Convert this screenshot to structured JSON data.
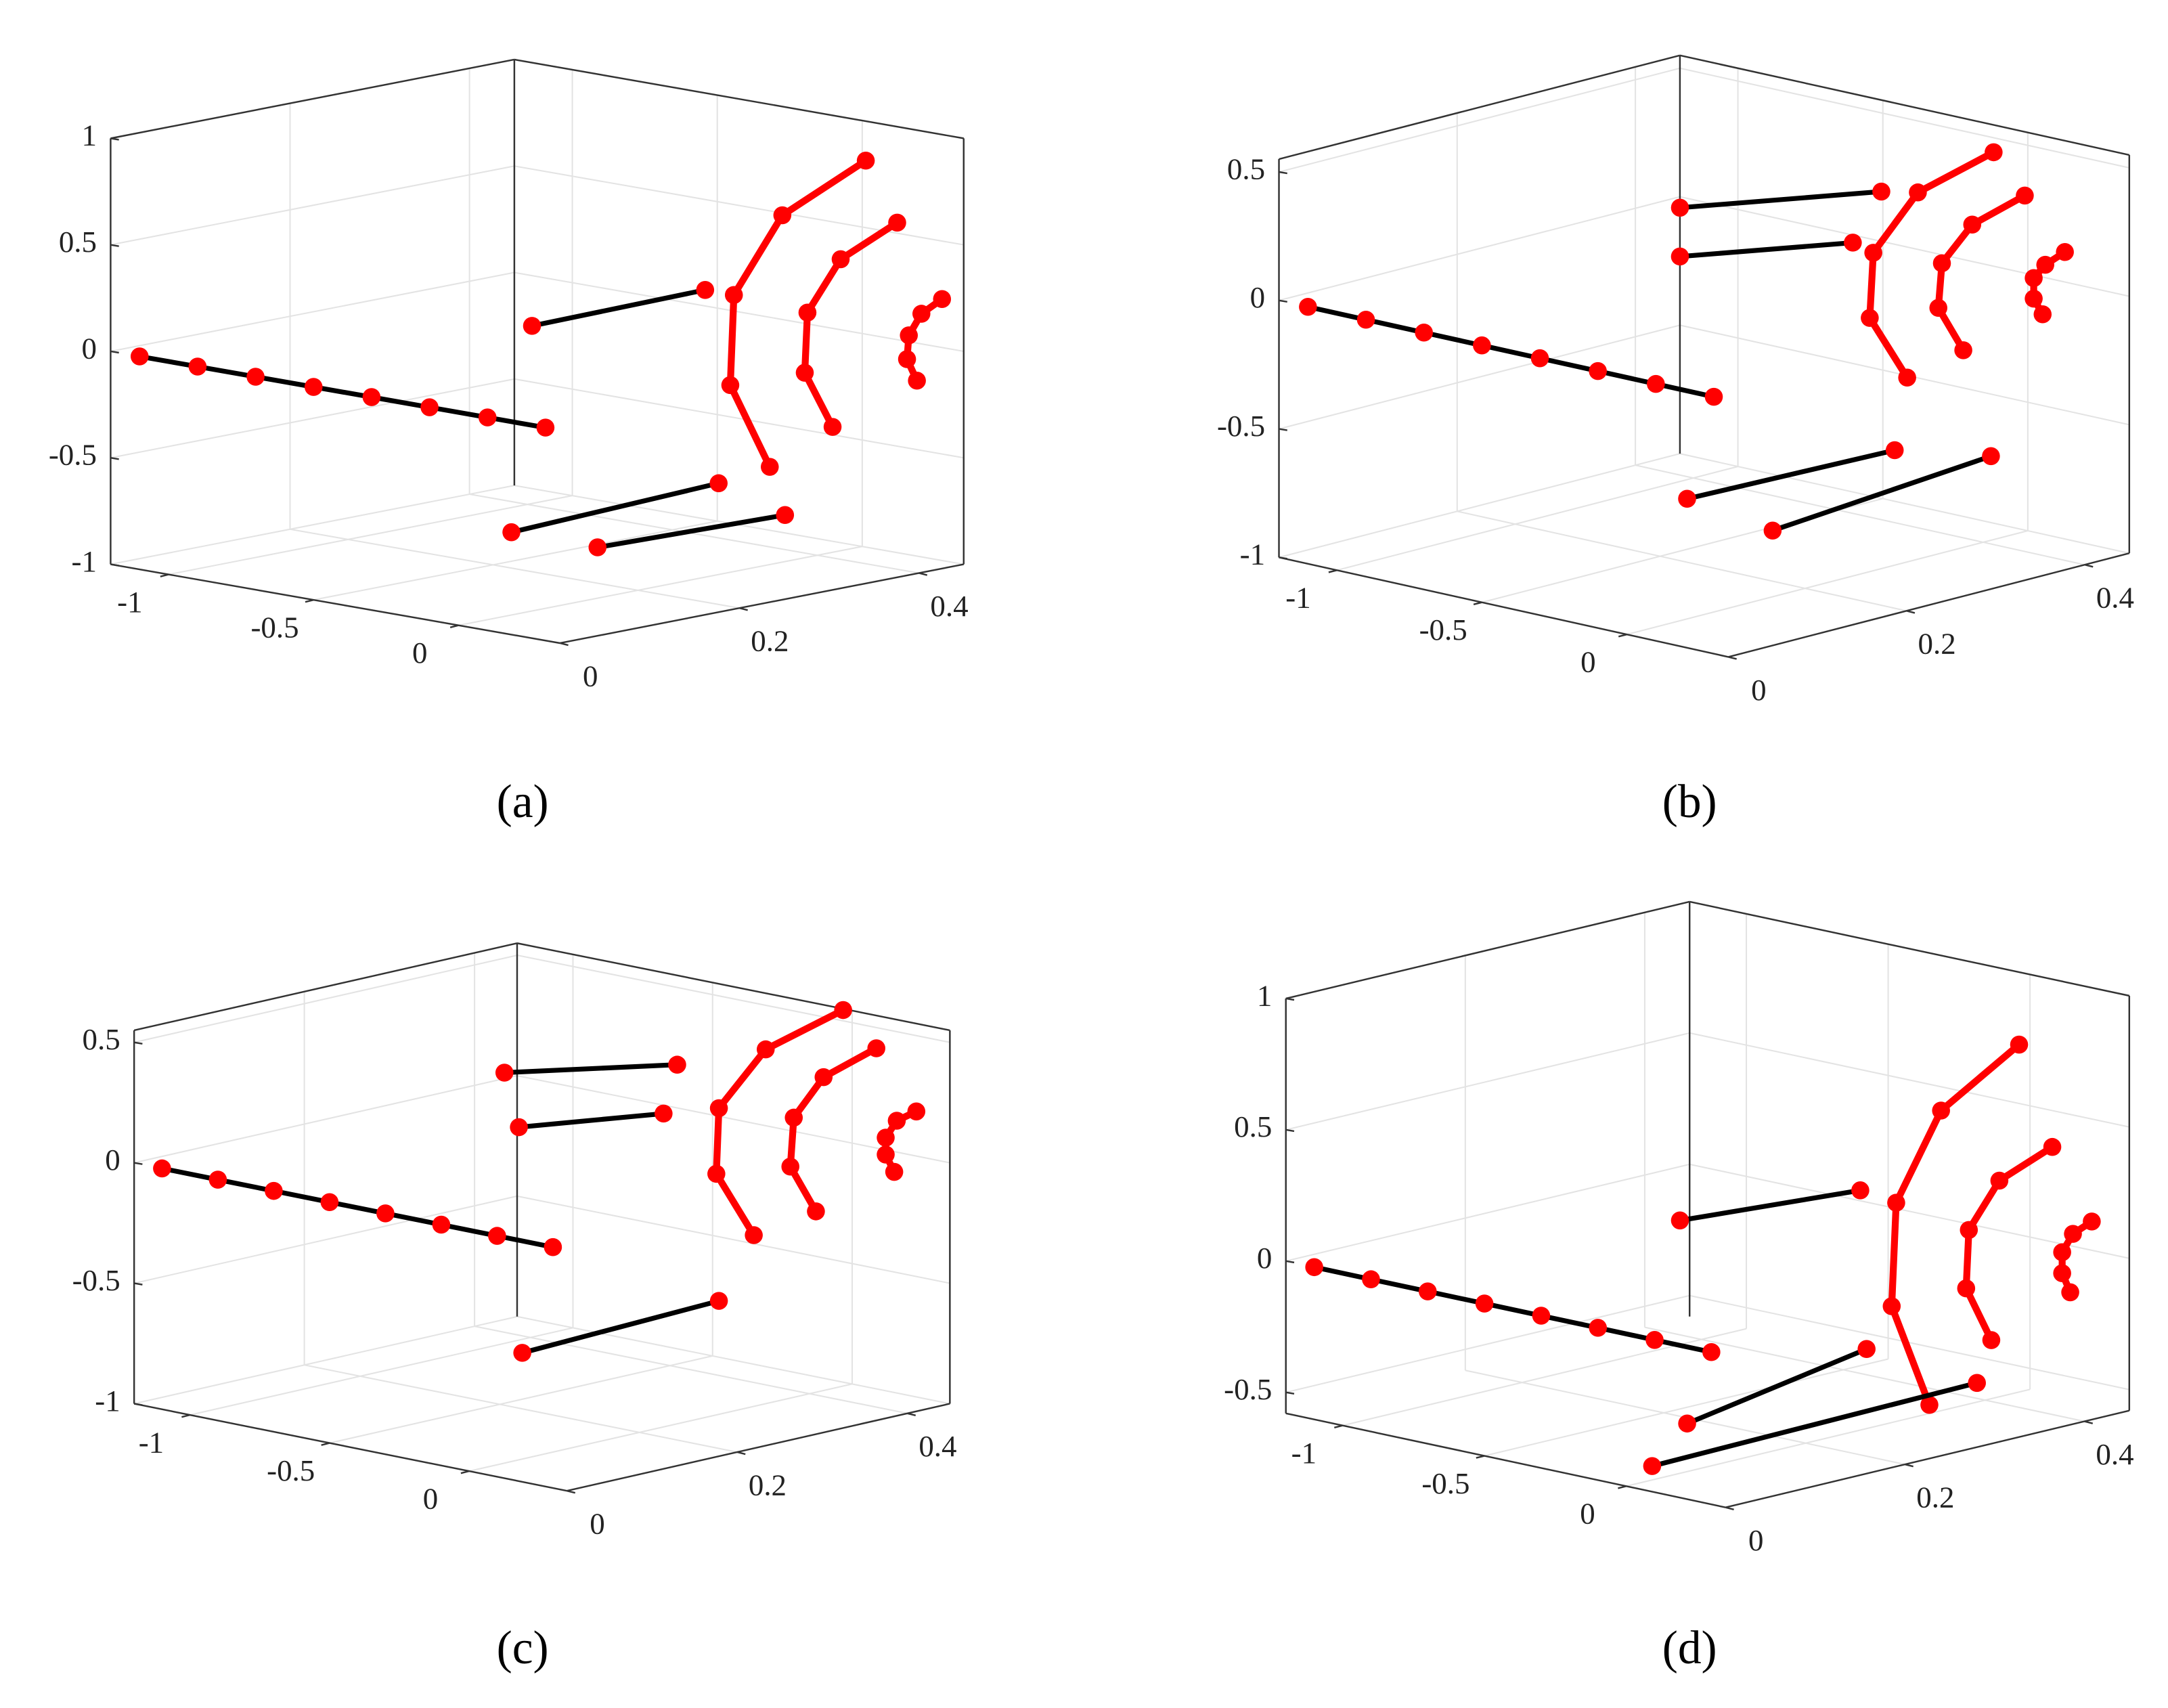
{
  "chart_data": [
    {
      "type": "line3d",
      "label": "(a)",
      "grid": true,
      "marker_color": "#ff0000",
      "xlim": [
        -1.2,
        0.35
      ],
      "xticks": [
        -1,
        -0.5,
        0
      ],
      "ylim": [
        0,
        0.45
      ],
      "yticks": [
        0,
        0.2,
        0.4
      ],
      "zlim": [
        -1,
        1
      ],
      "zticks": [
        -1,
        -0.5,
        0,
        0.5,
        1
      ],
      "series": [
        {
          "color": "#000000",
          "x": [
            -1.1,
            -0.9,
            -0.7,
            -0.5,
            -0.3,
            -0.1,
            0.1,
            0.3
          ],
          "y": [
            0,
            0,
            0,
            0,
            0,
            0,
            0,
            0
          ],
          "z": [
            0,
            0,
            0,
            0,
            0,
            0,
            0,
            0
          ]
        },
        {
          "color": "#ff0000",
          "x": [
            0.3,
            0.3,
            0.3,
            0.3,
            0.3
          ],
          "y": [
            0.357,
            0.264,
            0.21,
            0.206,
            0.25
          ],
          "z": [
            0.96,
            0.78,
            0.45,
            0.03,
            -0.39
          ]
        },
        {
          "color": "#ff0000",
          "x": [
            0.3,
            0.3,
            0.3,
            0.3,
            0.3
          ],
          "y": [
            0.392,
            0.329,
            0.292,
            0.289,
            0.32
          ],
          "z": [
            0.64,
            0.52,
            0.3,
            0.02,
            -0.26
          ]
        },
        {
          "color": "#ff0000",
          "x": [
            0.3,
            0.3,
            0.3,
            0.3,
            0.3
          ],
          "y": [
            0.442,
            0.419,
            0.405,
            0.403,
            0.414
          ],
          "z": [
            0.24,
            0.19,
            0.1,
            -0.01,
            -0.12
          ]
        },
        {
          "color": "#000000",
          "x": [
            0.3,
            0.3
          ],
          "y": [
            -0.015,
            0.178
          ],
          "z": [
            0.49,
            0.5
          ]
        },
        {
          "color": "#000000",
          "x": [
            0.3,
            0.3
          ],
          "y": [
            -0.038,
            0.193
          ],
          "z": [
            -0.46,
            -0.42
          ]
        },
        {
          "color": "#000000",
          "x": [
            0.3,
            0.3
          ],
          "y": [
            0.058,
            0.267
          ],
          "z": [
            -0.61,
            -0.63
          ]
        }
      ]
    },
    {
      "type": "line3d",
      "label": "(b)",
      "grid": true,
      "marker_color": "#ff0000",
      "xlim": [
        -1.2,
        0.35
      ],
      "xticks": [
        -1,
        -0.5,
        0
      ],
      "ylim": [
        0,
        0.45
      ],
      "yticks": [
        0,
        0.2,
        0.4
      ],
      "zlim": [
        -1,
        0.55
      ],
      "zticks": [
        -1,
        -0.5,
        0,
        0.5
      ],
      "series": [
        {
          "color": "#000000",
          "x": [
            -1.1,
            -0.9,
            -0.7,
            -0.5,
            -0.3,
            -0.1,
            0.1,
            0.3
          ],
          "y": [
            0,
            0,
            0,
            0,
            0,
            0,
            0,
            0
          ],
          "z": [
            0,
            0,
            0,
            0,
            0,
            0,
            0,
            0
          ]
        },
        {
          "color": "#ff0000",
          "x": [
            0.3,
            0.3,
            0.3,
            0.3,
            0.3
          ],
          "y": [
            0.314,
            0.229,
            0.179,
            0.175,
            0.217
          ],
          "z": [
            0.67,
            0.59,
            0.4,
            0.15,
            -0.12
          ]
        },
        {
          "color": "#ff0000",
          "x": [
            0.3,
            0.3,
            0.3,
            0.3,
            0.3
          ],
          "y": [
            0.349,
            0.29,
            0.256,
            0.252,
            0.28
          ],
          "z": [
            0.47,
            0.41,
            0.29,
            0.12,
            -0.07
          ]
        },
        {
          "color": "#ff0000",
          "x": [
            0.3,
            0.3,
            0.3,
            0.3,
            0.3
          ],
          "y": [
            0.394,
            0.372,
            0.359,
            0.359,
            0.369
          ],
          "z": [
            0.21,
            0.18,
            0.14,
            0.06,
            -0.01
          ]
        },
        {
          "color": "#000000",
          "x": [
            0.3,
            0.3
          ],
          "y": [
            -0.038,
            0.188
          ],
          "z": [
            0.77,
            0.63
          ]
        },
        {
          "color": "#000000",
          "x": [
            0.3,
            0.3
          ],
          "y": [
            -0.038,
            0.156
          ],
          "z": [
            0.58,
            0.46
          ]
        },
        {
          "color": "#000000",
          "x": [
            0.3,
            0.3
          ],
          "y": [
            -0.03,
            0.203
          ],
          "z": [
            -0.37,
            -0.39
          ]
        },
        {
          "color": "#000000",
          "x": [
            0.3,
            0.3
          ],
          "y": [
            0.066,
            0.311
          ],
          "z": [
            -0.58,
            -0.51
          ]
        }
      ]
    },
    {
      "type": "line3d",
      "label": "(c)",
      "grid": true,
      "marker_color": "#ff0000",
      "xlim": [
        -1.2,
        0.35
      ],
      "xticks": [
        -1,
        -0.5,
        0
      ],
      "ylim": [
        0,
        0.45
      ],
      "yticks": [
        0,
        0.2,
        0.4
      ],
      "zlim": [
        -1,
        0.55
      ],
      "zticks": [
        -1,
        -0.5,
        0,
        0.5
      ],
      "series": [
        {
          "color": "#000000",
          "x": [
            -1.1,
            -0.9,
            -0.7,
            -0.5,
            -0.3,
            -0.1,
            0.1,
            0.3
          ],
          "y": [
            0,
            0,
            0,
            0,
            0,
            0,
            0,
            0
          ],
          "z": [
            0,
            0,
            0,
            0,
            0,
            0,
            0,
            0
          ]
        },
        {
          "color": "#ff0000",
          "x": [
            0.3,
            0.3,
            0.3,
            0.3,
            0.3
          ],
          "y": [
            0.341,
            0.25,
            0.195,
            0.192,
            0.236
          ],
          "z": [
            0.71,
            0.62,
            0.42,
            0.15,
            -0.14
          ]
        },
        {
          "color": "#ff0000",
          "x": [
            0.3,
            0.3,
            0.3,
            0.3,
            0.3
          ],
          "y": [
            0.38,
            0.318,
            0.283,
            0.279,
            0.309
          ],
          "z": [
            0.52,
            0.45,
            0.31,
            0.11,
            -0.1
          ]
        },
        {
          "color": "#ff0000",
          "x": [
            0.3,
            0.3,
            0.3,
            0.3,
            0.3
          ],
          "y": [
            0.427,
            0.404,
            0.391,
            0.391,
            0.401
          ],
          "z": [
            0.22,
            0.2,
            0.14,
            0.07,
            -0.01
          ]
        },
        {
          "color": "#000000",
          "x": [
            0.3,
            0.3
          ],
          "y": [
            -0.057,
            0.146
          ],
          "z": [
            0.77,
            0.64
          ]
        },
        {
          "color": "#000000",
          "x": [
            0.3,
            0.3
          ],
          "y": [
            -0.04,
            0.13
          ],
          "z": [
            0.53,
            0.45
          ]
        },
        {
          "color": "#000000",
          "x": [
            0.3,
            0.3
          ],
          "y": [
            -0.036,
            0.195
          ],
          "z": [
            -0.41,
            -0.38
          ]
        }
      ]
    },
    {
      "type": "line3d",
      "label": "(d)",
      "grid": true,
      "marker_color": "#ff0000",
      "xlim": [
        -1.2,
        0.35
      ],
      "xticks": [
        -1,
        -0.5,
        0
      ],
      "ylim": [
        0,
        0.45
      ],
      "yticks": [
        0,
        0.2,
        0.4
      ],
      "zlim": [
        -0.58,
        1
      ],
      "zticks": [
        -0.5,
        0,
        0.5,
        1
      ],
      "series": [
        {
          "color": "#000000",
          "x": [
            -1.1,
            -0.9,
            -0.7,
            -0.5,
            -0.3,
            -0.1,
            0.1,
            0.3
          ],
          "y": [
            0,
            0,
            0,
            0,
            0,
            0,
            0,
            0
          ],
          "z": [
            0,
            0,
            0,
            0,
            0,
            0,
            0,
            0
          ]
        },
        {
          "color": "#ff0000",
          "x": [
            0.3,
            0.3,
            0.3,
            0.3,
            0.3
          ],
          "y": [
            0.343,
            0.256,
            0.206,
            0.201,
            0.243
          ],
          "z": [
            0.89,
            0.71,
            0.4,
            0.01,
            -0.4
          ]
        },
        {
          "color": "#ff0000",
          "x": [
            0.3,
            0.3,
            0.3,
            0.3,
            0.3
          ],
          "y": [
            0.38,
            0.321,
            0.287,
            0.284,
            0.312
          ],
          "z": [
            0.47,
            0.39,
            0.23,
            0.01,
            -0.21
          ]
        },
        {
          "color": "#ff0000",
          "x": [
            0.3,
            0.3,
            0.3,
            0.3,
            0.3
          ],
          "y": [
            0.424,
            0.403,
            0.391,
            0.391,
            0.4
          ],
          "z": [
            0.15,
            0.12,
            0.06,
            -0.02,
            -0.1
          ]
        },
        {
          "color": "#000000",
          "x": [
            0.3,
            0.3
          ],
          "y": [
            -0.035,
            0.166
          ],
          "z": [
            0.53,
            0.48
          ]
        },
        {
          "color": "#000000",
          "x": [
            0.3,
            0.3
          ],
          "y": [
            -0.066,
            0.296
          ],
          "z": [
            -0.38,
            -0.36
          ]
        },
        {
          "color": "#000000",
          "x": [
            0.3,
            0.3
          ],
          "y": [
            -0.027,
            0.173
          ],
          "z": [
            -0.25,
            -0.13
          ]
        }
      ]
    }
  ]
}
